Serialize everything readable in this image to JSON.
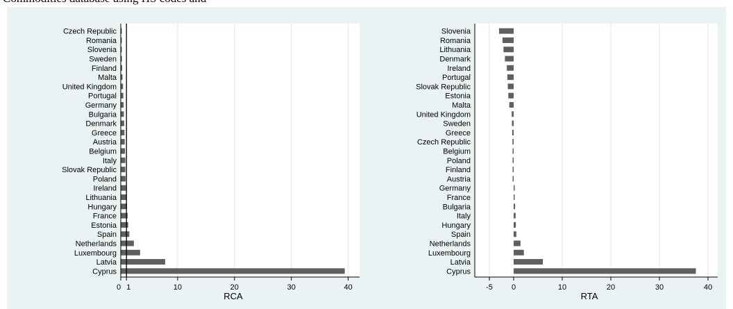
{
  "header": {
    "text": "Commodities database using HS codes and"
  },
  "chart_data": [
    {
      "type": "bar",
      "orientation": "horizontal",
      "xlabel": "RCA",
      "xlim": [
        0,
        42
      ],
      "xticks": [
        0,
        1,
        10,
        20,
        30,
        40
      ],
      "xtick_labels": [
        "0",
        "1",
        "10",
        "20",
        "30",
        "40"
      ],
      "reference_line": 1,
      "grid": true,
      "categories": [
        "Czech Republic",
        "Romania",
        "Slovenia",
        "Sweden",
        "Finland",
        "Malta",
        "United Kingdom",
        "Portugal",
        "Germany",
        "Bulgaria",
        "Denmark",
        "Greece",
        "Austria",
        "Belgium",
        "Italy",
        "Slovak Republic",
        "Poland",
        "Ireland",
        "Lithuania",
        "Hungary",
        "France",
        "Estonia",
        "Spain",
        "Netherlands",
        "Luxembourg",
        "Latvia",
        "Cyprus"
      ],
      "values": [
        0.05,
        0.1,
        0.15,
        0.2,
        0.25,
        0.3,
        0.4,
        0.45,
        0.5,
        0.55,
        0.6,
        0.65,
        0.7,
        0.75,
        0.8,
        0.8,
        0.85,
        0.9,
        1.0,
        1.1,
        1.2,
        1.3,
        1.5,
        2.3,
        3.4,
        7.8,
        39.4
      ],
      "bar_color": "#5f5f5f"
    },
    {
      "type": "bar",
      "orientation": "horizontal",
      "xlabel": "RTA",
      "xlim": [
        -8,
        42
      ],
      "xticks": [
        -5,
        0,
        10,
        20,
        30,
        40
      ],
      "xtick_labels": [
        "-5",
        "0",
        "10",
        "20",
        "30",
        "40"
      ],
      "grid": true,
      "categories": [
        "Slovenia",
        "Romania",
        "Lithuania",
        "Denmark",
        "Ireland",
        "Portugal",
        "Slovak Republic",
        "Estonia",
        "Malta",
        "United Kingdom",
        "Sweden",
        "Greece",
        "Czech Republic",
        "Belgium",
        "Poland",
        "Finland",
        "Austria",
        "Germany",
        "France",
        "Bulgaria",
        "Italy",
        "Hungary",
        "Spain",
        "Netherlands",
        "Luxembourg",
        "Latvia",
        "Cyprus"
      ],
      "values": [
        -3.0,
        -2.3,
        -2.1,
        -1.8,
        -1.4,
        -1.3,
        -1.2,
        -1.1,
        -0.9,
        -0.4,
        -0.35,
        -0.3,
        -0.25,
        -0.2,
        -0.15,
        -0.1,
        -0.05,
        0.05,
        0.1,
        0.3,
        0.4,
        0.45,
        0.55,
        1.4,
        2.1,
        6.0,
        37.5
      ],
      "bar_color": "#5f5f5f"
    }
  ]
}
